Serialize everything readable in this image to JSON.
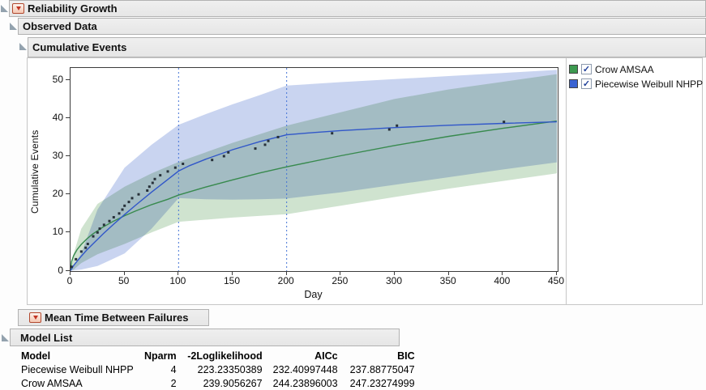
{
  "outline": {
    "reliability_growth": "Reliability Growth",
    "observed_data": "Observed Data",
    "cumulative_events": "Cumulative Events",
    "mean_time_between_failures": "Mean Time Between Failures",
    "model_list": "Model List"
  },
  "legend": {
    "items": [
      {
        "label": "Crow AMSAA",
        "swatch_color": "#3d9a50",
        "checked": true
      },
      {
        "label": "Piecewise Weibull NHPP",
        "swatch_color": "#3a63d2",
        "checked": true
      }
    ]
  },
  "chart_data": {
    "type": "line",
    "xlabel": "Day",
    "ylabel": "Cumulative Events",
    "xlim": [
      0,
      450
    ],
    "ylim": [
      0,
      53
    ],
    "x_ticks": [
      0,
      50,
      100,
      150,
      200,
      250,
      300,
      350,
      400,
      450
    ],
    "y_ticks": [
      0,
      10,
      20,
      30,
      40,
      50
    ],
    "phase_boundaries": [
      100,
      200
    ],
    "phase_line_color": "#4272d6",
    "observed_point_color": "#273039",
    "observed_points": [
      [
        1,
        1
      ],
      [
        5,
        3
      ],
      [
        10,
        5
      ],
      [
        14,
        6
      ],
      [
        16,
        7
      ],
      [
        21,
        9
      ],
      [
        25,
        10
      ],
      [
        27,
        11
      ],
      [
        31,
        12
      ],
      [
        36,
        13
      ],
      [
        40,
        14
      ],
      [
        45,
        15
      ],
      [
        48,
        16
      ],
      [
        50,
        17
      ],
      [
        54,
        18
      ],
      [
        57,
        19
      ],
      [
        63,
        20
      ],
      [
        71,
        21
      ],
      [
        73,
        22
      ],
      [
        76,
        23
      ],
      [
        78,
        24
      ],
      [
        83,
        25
      ],
      [
        90,
        26
      ],
      [
        97,
        27
      ],
      [
        104,
        28
      ],
      [
        131,
        29
      ],
      [
        142,
        30
      ],
      [
        146,
        31
      ],
      [
        171,
        32
      ],
      [
        180,
        33
      ],
      [
        183,
        34
      ],
      [
        192,
        35
      ],
      [
        242,
        36
      ],
      [
        295,
        37
      ],
      [
        302,
        38
      ],
      [
        401,
        39
      ]
    ],
    "series": [
      {
        "name": "Crow AMSAA",
        "color": "#388a4e",
        "points": [
          [
            0,
            0
          ],
          [
            1,
            2.4
          ],
          [
            3,
            4.0
          ],
          [
            6,
            5.5
          ],
          [
            10,
            6.9
          ],
          [
            15,
            8.3
          ],
          [
            20,
            9.5
          ],
          [
            30,
            11.4
          ],
          [
            40,
            13.0
          ],
          [
            50,
            14.4
          ],
          [
            60,
            15.6
          ],
          [
            75,
            17.3
          ],
          [
            90,
            18.7
          ],
          [
            100,
            19.8
          ],
          [
            125,
            21.9
          ],
          [
            150,
            23.8
          ],
          [
            175,
            25.6
          ],
          [
            200,
            27.2
          ],
          [
            250,
            30.1
          ],
          [
            300,
            32.8
          ],
          [
            350,
            35.2
          ],
          [
            400,
            37.3
          ],
          [
            450,
            39.2
          ]
        ]
      },
      {
        "name": "Piecewise Weibull NHPP",
        "color": "#3157c9",
        "points": [
          [
            0,
            0
          ],
          [
            3,
            1.4
          ],
          [
            5,
            2.1
          ],
          [
            10,
            3.8
          ],
          [
            15,
            5.4
          ],
          [
            20,
            6.8
          ],
          [
            30,
            9.6
          ],
          [
            40,
            12.2
          ],
          [
            50,
            14.7
          ],
          [
            60,
            17.1
          ],
          [
            75,
            20.6
          ],
          [
            90,
            23.9
          ],
          [
            100,
            26.1
          ],
          [
            110,
            27.5
          ],
          [
            125,
            29.2
          ],
          [
            150,
            31.7
          ],
          [
            175,
            33.8
          ],
          [
            200,
            35.6
          ],
          [
            225,
            36.2
          ],
          [
            250,
            36.7
          ],
          [
            300,
            37.5
          ],
          [
            350,
            38.1
          ],
          [
            400,
            38.6
          ],
          [
            450,
            39.0
          ]
        ]
      }
    ],
    "bands": [
      {
        "name": "Crow AMSAA confidence band",
        "color": "#cfe3cf",
        "points": [
          [
            0,
            0,
            0
          ],
          [
            3,
            0.3,
            4.5
          ],
          [
            10,
            2,
            11
          ],
          [
            25,
            4.3,
            17.5
          ],
          [
            50,
            7,
            22
          ],
          [
            75,
            10,
            25.5
          ],
          [
            100,
            12.8,
            28.5
          ],
          [
            150,
            13.9,
            33.5
          ],
          [
            200,
            14.8,
            38
          ],
          [
            250,
            17,
            41.5
          ],
          [
            300,
            19.3,
            45
          ],
          [
            350,
            21.5,
            47.5
          ],
          [
            400,
            23.5,
            49.5
          ],
          [
            450,
            25.5,
            51.5
          ]
        ]
      },
      {
        "name": "Piecewise Weibull NHPP confidence band",
        "color": "#c9d4f0",
        "points": [
          [
            0,
            0,
            0
          ],
          [
            10,
            0.3,
            4.5
          ],
          [
            25,
            1.2,
            16
          ],
          [
            50,
            4.5,
            27
          ],
          [
            75,
            11,
            33
          ],
          [
            100,
            19,
            38.2
          ],
          [
            125,
            18.7,
            41
          ],
          [
            150,
            18.6,
            43.6
          ],
          [
            175,
            18.7,
            46
          ],
          [
            200,
            18.9,
            48.5
          ],
          [
            250,
            20.5,
            49.4
          ],
          [
            300,
            22.5,
            50.2
          ],
          [
            350,
            24.5,
            51
          ],
          [
            400,
            26.5,
            51.8
          ],
          [
            450,
            28.4,
            52.6
          ]
        ]
      }
    ]
  },
  "model_table": {
    "columns": [
      "Model",
      "Nparm",
      "-2Loglikelihood",
      "AICc",
      "BIC"
    ],
    "rows": [
      {
        "model": "Piecewise Weibull NHPP",
        "nparm": "4",
        "neg2loglik": "223.23350389",
        "aicc": "232.40997448",
        "bic": "237.88775047"
      },
      {
        "model": "Crow AMSAA",
        "nparm": "2",
        "neg2loglik": "239.9056267",
        "aicc": "244.23896003",
        "bic": "247.23274999"
      }
    ]
  }
}
